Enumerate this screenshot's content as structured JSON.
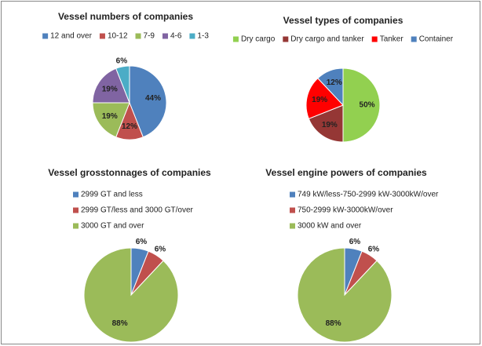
{
  "chart_data": [
    {
      "type": "pie",
      "title": "Vessel numbers of companies",
      "categories": [
        "12 and over",
        "10-12",
        "7-9",
        "4-6",
        "1-3"
      ],
      "values": [
        44,
        12,
        19,
        19,
        6
      ],
      "value_labels": [
        "44%",
        "12%",
        "19%",
        "19%",
        "6%"
      ],
      "colors": [
        "#4f81bd",
        "#c0504d",
        "#9bbb59",
        "#8064a2",
        "#4bacc6"
      ],
      "legend": "top",
      "legend_orientation": "horizontal"
    },
    {
      "type": "pie",
      "title": "Vessel types of companies",
      "categories": [
        "Dry cargo",
        "Dry cargo and tanker",
        "Tanker",
        "Container"
      ],
      "values": [
        50,
        19,
        19,
        12
      ],
      "value_labels": [
        "50%",
        "19%",
        "19%",
        "12%"
      ],
      "colors": [
        "#92d050",
        "#953735",
        "#ff0000",
        "#4f81bd"
      ],
      "legend": "top",
      "legend_orientation": "horizontal"
    },
    {
      "type": "pie",
      "title": "Vessel grosstonnages of companies",
      "categories": [
        "2999 GT and less",
        "2999 GT/less and 3000 GT/over",
        "3000 GT and over"
      ],
      "values": [
        6,
        6,
        88
      ],
      "value_labels": [
        "6%",
        "6%",
        "88%"
      ],
      "colors": [
        "#4f81bd",
        "#c0504d",
        "#9bbb59"
      ],
      "legend": "top",
      "legend_orientation": "vertical"
    },
    {
      "type": "pie",
      "title": "Vessel engine powers of companies",
      "categories": [
        "749 kW/less-750-2999 kW-3000kW/over",
        "750-2999 kW-3000kW/over",
        "3000 kW and over"
      ],
      "values": [
        6,
        6,
        88
      ],
      "value_labels": [
        "6%",
        "6%",
        "88%"
      ],
      "colors": [
        "#4f81bd",
        "#c0504d",
        "#9bbb59"
      ],
      "legend": "top",
      "legend_orientation": "vertical"
    }
  ]
}
